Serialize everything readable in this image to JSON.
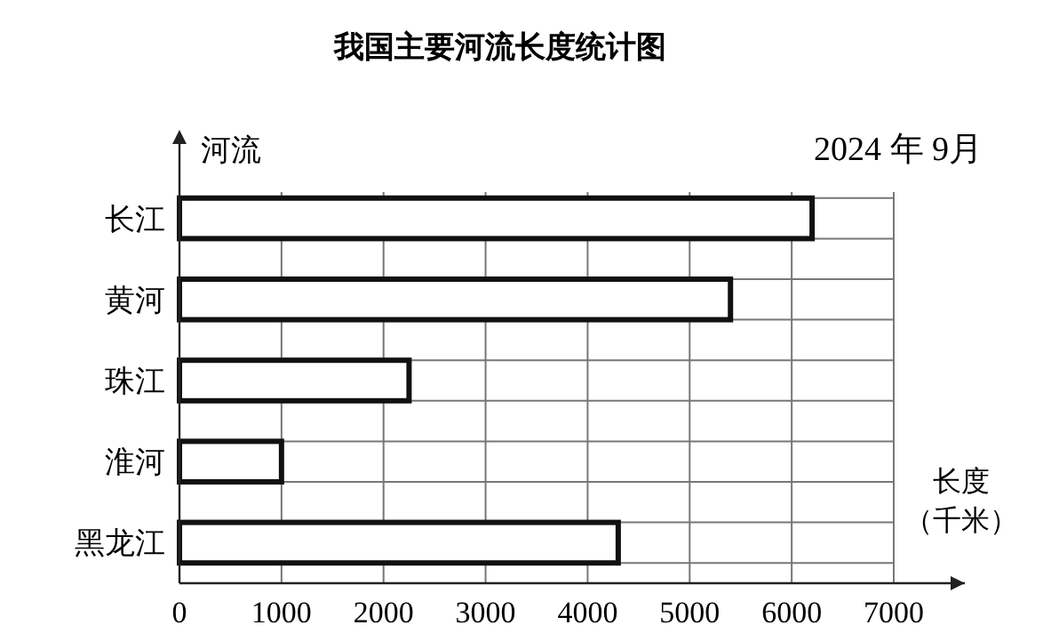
{
  "chart_data": {
    "type": "bar",
    "orientation": "horizontal",
    "title": "我国主要河流长度统计图",
    "ylabel": "河流",
    "xlabel": "长度（千米）",
    "categories": [
      "长江",
      "黄河",
      "珠江",
      "淮河",
      "黑龙江"
    ],
    "values": [
      6200,
      5400,
      2250,
      1000,
      4300
    ],
    "color": "#ffffff",
    "xlim": [
      0,
      7000
    ],
    "xticks": [
      0,
      1000,
      2000,
      3000,
      4000,
      5000,
      6000,
      7000
    ],
    "grid": true,
    "annotations": [
      "2024 年 9月"
    ]
  }
}
